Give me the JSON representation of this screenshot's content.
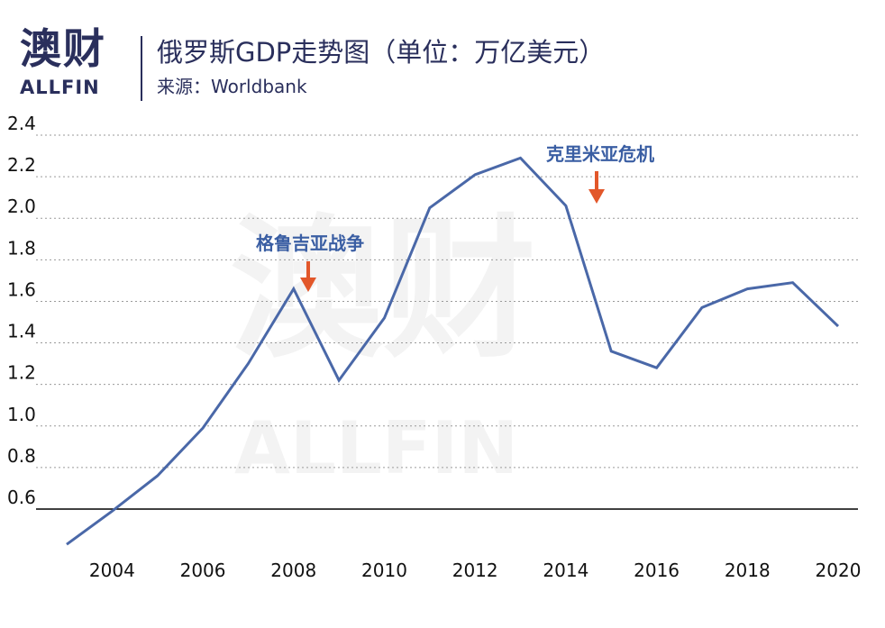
{
  "brand": {
    "name_cn": "澳财",
    "name_en": "ALLFIN"
  },
  "header": {
    "title": "俄罗斯GDP走势图（单位：万亿美元）",
    "source": "来源：Worldbank"
  },
  "colors": {
    "line": "#4a68a8",
    "annotation_text": "#3a5ea3",
    "arrow": "#e2572a",
    "brand": "#2a2f5c"
  },
  "chart_data": {
    "type": "line",
    "title": "俄罗斯GDP走势图（单位：万亿美元）",
    "unit": "万亿美元",
    "xlabel": "",
    "ylabel": "",
    "x": [
      2003,
      2004,
      2005,
      2006,
      2007,
      2008,
      2009,
      2010,
      2011,
      2012,
      2013,
      2014,
      2015,
      2016,
      2017,
      2018,
      2019,
      2020
    ],
    "x_ticks": [
      "2004",
      "2006",
      "2008",
      "2010",
      "2012",
      "2014",
      "2016",
      "2018",
      "2020"
    ],
    "x_tick_values": [
      2004,
      2006,
      2008,
      2010,
      2012,
      2014,
      2016,
      2018,
      2020
    ],
    "xlim": [
      2003,
      2020.5
    ],
    "y": [
      0.43,
      0.59,
      0.76,
      0.99,
      1.3,
      1.66,
      1.22,
      1.52,
      2.05,
      2.21,
      2.29,
      2.06,
      1.36,
      1.28,
      1.57,
      1.66,
      1.69,
      1.48
    ],
    "y_ticks": [
      "0.6",
      "0.8",
      "1.0",
      "1.2",
      "1.4",
      "1.6",
      "1.8",
      "2.0",
      "2.2",
      "2.4"
    ],
    "y_tick_values": [
      0.6,
      0.8,
      1.0,
      1.2,
      1.4,
      1.6,
      1.8,
      2.0,
      2.2,
      2.4
    ],
    "ylim": [
      0.6,
      2.4
    ],
    "grid": "horizontal dotted",
    "annotations": [
      {
        "text": "格鲁吉亚战争",
        "x": 2008,
        "y": 1.66
      },
      {
        "text": "克里米亚危机",
        "x": 2014.5,
        "y": 2.06
      }
    ]
  }
}
